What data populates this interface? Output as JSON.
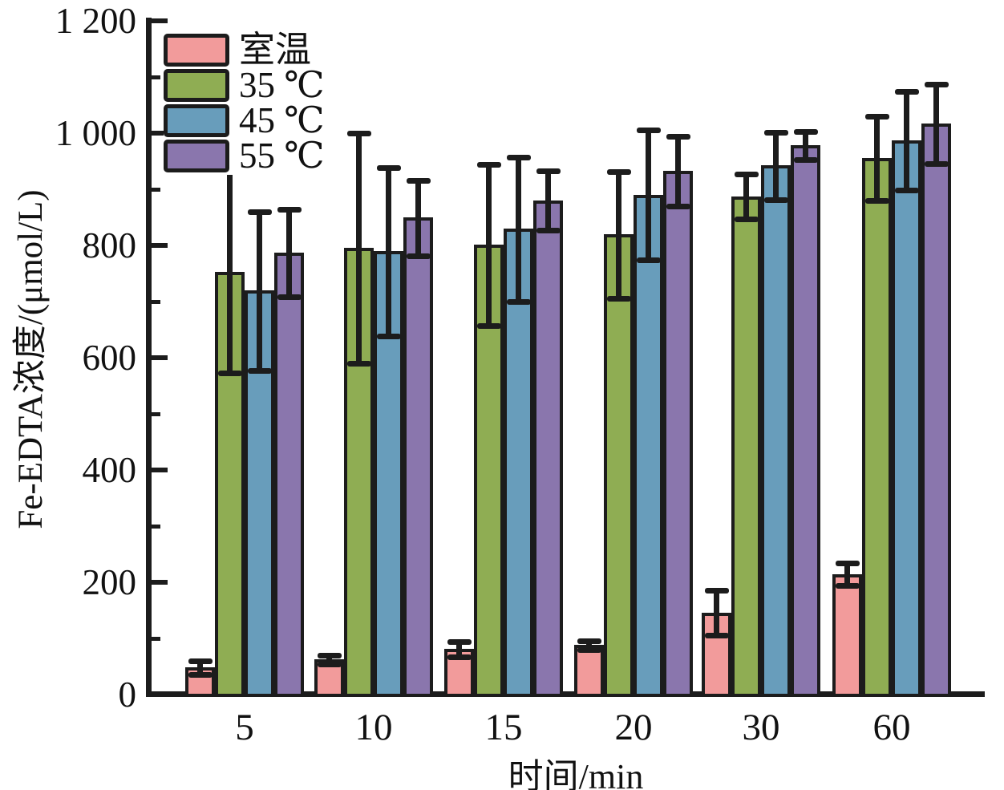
{
  "chart_data": {
    "type": "bar",
    "title": "",
    "xlabel": "时间/min",
    "ylabel": "Fe-EDTA浓度/(μmol/L)",
    "categories": [
      "5",
      "10",
      "15",
      "20",
      "30",
      "60"
    ],
    "ylim": [
      0,
      1200
    ],
    "ytick_step": 200,
    "yminor_step": 100,
    "ytick_labels": [
      "0",
      "200",
      "400",
      "600",
      "800",
      "1 000",
      "1 200"
    ],
    "grid": false,
    "legend_position": "top-left",
    "error_bars": true,
    "axis_color": "#1c1c1c",
    "series": [
      {
        "name": "室温",
        "color": "#F29B9B",
        "values": [
          47,
          62,
          80,
          87,
          145,
          213
        ],
        "errors": [
          12,
          8,
          13,
          8,
          40,
          20
        ]
      },
      {
        "name": "35 ℃",
        "color": "#8FAD53",
        "values": [
          752,
          795,
          800,
          818,
          886,
          954
        ],
        "errors": [
          180,
          205,
          143,
          113,
          40,
          75
        ]
      },
      {
        "name": "45 ℃",
        "color": "#689DBB",
        "values": [
          718,
          788,
          828,
          889,
          941,
          986
        ],
        "errors": [
          142,
          150,
          128,
          116,
          60,
          88
        ]
      },
      {
        "name": "55 ℃",
        "color": "#8A76AD",
        "values": [
          786,
          848,
          879,
          931,
          977,
          1016
        ],
        "errors": [
          78,
          67,
          53,
          62,
          25,
          71
        ]
      }
    ]
  }
}
